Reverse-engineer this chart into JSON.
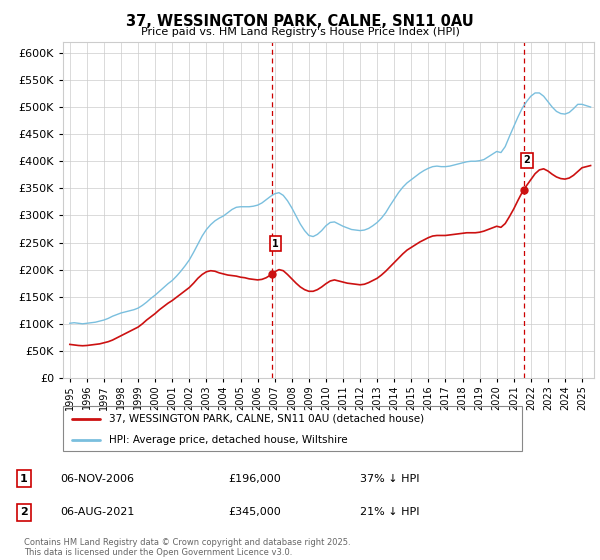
{
  "title": "37, WESSINGTON PARK, CALNE, SN11 0AU",
  "subtitle": "Price paid vs. HM Land Registry's House Price Index (HPI)",
  "legend_line1": "37, WESSINGTON PARK, CALNE, SN11 0AU (detached house)",
  "legend_line2": "HPI: Average price, detached house, Wiltshire",
  "marker1_date": "06-NOV-2006",
  "marker1_price": 196000,
  "marker1_label": "37% ↓ HPI",
  "marker2_date": "06-AUG-2021",
  "marker2_price": 345000,
  "marker2_label": "21% ↓ HPI",
  "footnote": "Contains HM Land Registry data © Crown copyright and database right 2025.\nThis data is licensed under the Open Government Licence v3.0.",
  "hpi_color": "#7abfde",
  "price_color": "#cc1111",
  "vline_color": "#cc0000",
  "marker1_x": 2006.85,
  "marker2_x": 2021.58,
  "ylim_max": 620000,
  "ylim_min": 0,
  "xlim_min": 1994.6,
  "xlim_max": 2025.7,
  "hpi_data": [
    [
      1995,
      101000
    ],
    [
      1995.25,
      102000
    ],
    [
      1995.5,
      101000
    ],
    [
      1995.75,
      100000
    ],
    [
      1996,
      101000
    ],
    [
      1996.25,
      102000
    ],
    [
      1996.5,
      103000
    ],
    [
      1996.75,
      105000
    ],
    [
      1997,
      107000
    ],
    [
      1997.25,
      110000
    ],
    [
      1997.5,
      114000
    ],
    [
      1997.75,
      117000
    ],
    [
      1998,
      120000
    ],
    [
      1998.25,
      122000
    ],
    [
      1998.5,
      124000
    ],
    [
      1998.75,
      126000
    ],
    [
      1999,
      129000
    ],
    [
      1999.25,
      134000
    ],
    [
      1999.5,
      140000
    ],
    [
      1999.75,
      147000
    ],
    [
      2000,
      153000
    ],
    [
      2000.25,
      160000
    ],
    [
      2000.5,
      167000
    ],
    [
      2000.75,
      174000
    ],
    [
      2001,
      180000
    ],
    [
      2001.25,
      188000
    ],
    [
      2001.5,
      197000
    ],
    [
      2001.75,
      207000
    ],
    [
      2002,
      218000
    ],
    [
      2002.25,
      232000
    ],
    [
      2002.5,
      247000
    ],
    [
      2002.75,
      262000
    ],
    [
      2003,
      274000
    ],
    [
      2003.25,
      283000
    ],
    [
      2003.5,
      290000
    ],
    [
      2003.75,
      295000
    ],
    [
      2004,
      299000
    ],
    [
      2004.25,
      305000
    ],
    [
      2004.5,
      311000
    ],
    [
      2004.75,
      315000
    ],
    [
      2005,
      316000
    ],
    [
      2005.25,
      316000
    ],
    [
      2005.5,
      316000
    ],
    [
      2005.75,
      317000
    ],
    [
      2006,
      319000
    ],
    [
      2006.25,
      323000
    ],
    [
      2006.5,
      329000
    ],
    [
      2006.75,
      335000
    ],
    [
      2007,
      340000
    ],
    [
      2007.25,
      342000
    ],
    [
      2007.5,
      337000
    ],
    [
      2007.75,
      327000
    ],
    [
      2008,
      314000
    ],
    [
      2008.25,
      299000
    ],
    [
      2008.5,
      284000
    ],
    [
      2008.75,
      272000
    ],
    [
      2009,
      263000
    ],
    [
      2009.25,
      261000
    ],
    [
      2009.5,
      265000
    ],
    [
      2009.75,
      272000
    ],
    [
      2010,
      281000
    ],
    [
      2010.25,
      287000
    ],
    [
      2010.5,
      288000
    ],
    [
      2010.75,
      284000
    ],
    [
      2011,
      280000
    ],
    [
      2011.25,
      277000
    ],
    [
      2011.5,
      274000
    ],
    [
      2011.75,
      273000
    ],
    [
      2012,
      272000
    ],
    [
      2012.25,
      273000
    ],
    [
      2012.5,
      276000
    ],
    [
      2012.75,
      281000
    ],
    [
      2013,
      287000
    ],
    [
      2013.25,
      295000
    ],
    [
      2013.5,
      305000
    ],
    [
      2013.75,
      318000
    ],
    [
      2014,
      330000
    ],
    [
      2014.25,
      342000
    ],
    [
      2014.5,
      352000
    ],
    [
      2014.75,
      360000
    ],
    [
      2015,
      366000
    ],
    [
      2015.25,
      372000
    ],
    [
      2015.5,
      378000
    ],
    [
      2015.75,
      383000
    ],
    [
      2016,
      387000
    ],
    [
      2016.25,
      390000
    ],
    [
      2016.5,
      391000
    ],
    [
      2016.75,
      390000
    ],
    [
      2017,
      390000
    ],
    [
      2017.25,
      391000
    ],
    [
      2017.5,
      393000
    ],
    [
      2017.75,
      395000
    ],
    [
      2018,
      397000
    ],
    [
      2018.25,
      399000
    ],
    [
      2018.5,
      400000
    ],
    [
      2018.75,
      400000
    ],
    [
      2019,
      401000
    ],
    [
      2019.25,
      403000
    ],
    [
      2019.5,
      408000
    ],
    [
      2019.75,
      413000
    ],
    [
      2020,
      418000
    ],
    [
      2020.25,
      416000
    ],
    [
      2020.5,
      427000
    ],
    [
      2020.75,
      446000
    ],
    [
      2021,
      464000
    ],
    [
      2021.25,
      482000
    ],
    [
      2021.5,
      498000
    ],
    [
      2021.75,
      510000
    ],
    [
      2022,
      520000
    ],
    [
      2022.25,
      526000
    ],
    [
      2022.5,
      526000
    ],
    [
      2022.75,
      520000
    ],
    [
      2023,
      510000
    ],
    [
      2023.25,
      500000
    ],
    [
      2023.5,
      492000
    ],
    [
      2023.75,
      488000
    ],
    [
      2024,
      487000
    ],
    [
      2024.25,
      490000
    ],
    [
      2024.5,
      497000
    ],
    [
      2024.75,
      505000
    ],
    [
      2025,
      505000
    ],
    [
      2025.5,
      500000
    ]
  ],
  "price_data": [
    [
      1995,
      62000
    ],
    [
      1995.25,
      61000
    ],
    [
      1995.5,
      60000
    ],
    [
      1995.75,
      59500
    ],
    [
      1996,
      60000
    ],
    [
      1996.25,
      61000
    ],
    [
      1996.5,
      62000
    ],
    [
      1996.75,
      63000
    ],
    [
      1997,
      65000
    ],
    [
      1997.25,
      67000
    ],
    [
      1997.5,
      70000
    ],
    [
      1997.75,
      74000
    ],
    [
      1998,
      78000
    ],
    [
      1998.25,
      82000
    ],
    [
      1998.5,
      86000
    ],
    [
      1998.75,
      90000
    ],
    [
      1999,
      94000
    ],
    [
      1999.25,
      100000
    ],
    [
      1999.5,
      107000
    ],
    [
      1999.75,
      113000
    ],
    [
      2000,
      119000
    ],
    [
      2000.25,
      126000
    ],
    [
      2000.5,
      132000
    ],
    [
      2000.75,
      138000
    ],
    [
      2001,
      143000
    ],
    [
      2001.25,
      149000
    ],
    [
      2001.5,
      155000
    ],
    [
      2001.75,
      161000
    ],
    [
      2002,
      167000
    ],
    [
      2002.25,
      175000
    ],
    [
      2002.5,
      184000
    ],
    [
      2002.75,
      191000
    ],
    [
      2003,
      196000
    ],
    [
      2003.25,
      198000
    ],
    [
      2003.5,
      197000
    ],
    [
      2003.75,
      194000
    ],
    [
      2004,
      192000
    ],
    [
      2004.25,
      190000
    ],
    [
      2004.5,
      189000
    ],
    [
      2004.75,
      188000
    ],
    [
      2005,
      186000
    ],
    [
      2005.25,
      185000
    ],
    [
      2005.5,
      183000
    ],
    [
      2005.75,
      182000
    ],
    [
      2006,
      181000
    ],
    [
      2006.25,
      182000
    ],
    [
      2006.5,
      185000
    ],
    [
      2006.75,
      190000
    ],
    [
      2007,
      196000
    ],
    [
      2007.25,
      200000
    ],
    [
      2007.5,
      198000
    ],
    [
      2007.75,
      191000
    ],
    [
      2008,
      183000
    ],
    [
      2008.25,
      175000
    ],
    [
      2008.5,
      168000
    ],
    [
      2008.75,
      163000
    ],
    [
      2009,
      160000
    ],
    [
      2009.25,
      160000
    ],
    [
      2009.5,
      163000
    ],
    [
      2009.75,
      168000
    ],
    [
      2010,
      174000
    ],
    [
      2010.25,
      179000
    ],
    [
      2010.5,
      181000
    ],
    [
      2010.75,
      179000
    ],
    [
      2011,
      177000
    ],
    [
      2011.25,
      175000
    ],
    [
      2011.5,
      174000
    ],
    [
      2011.75,
      173000
    ],
    [
      2012,
      172000
    ],
    [
      2012.25,
      173000
    ],
    [
      2012.5,
      176000
    ],
    [
      2012.75,
      180000
    ],
    [
      2013,
      184000
    ],
    [
      2013.25,
      190000
    ],
    [
      2013.5,
      197000
    ],
    [
      2013.75,
      205000
    ],
    [
      2014,
      213000
    ],
    [
      2014.25,
      221000
    ],
    [
      2014.5,
      229000
    ],
    [
      2014.75,
      236000
    ],
    [
      2015,
      241000
    ],
    [
      2015.25,
      246000
    ],
    [
      2015.5,
      251000
    ],
    [
      2015.75,
      255000
    ],
    [
      2016,
      259000
    ],
    [
      2016.25,
      262000
    ],
    [
      2016.5,
      263000
    ],
    [
      2016.75,
      263000
    ],
    [
      2017,
      263000
    ],
    [
      2017.25,
      264000
    ],
    [
      2017.5,
      265000
    ],
    [
      2017.75,
      266000
    ],
    [
      2018,
      267000
    ],
    [
      2018.25,
      268000
    ],
    [
      2018.5,
      268000
    ],
    [
      2018.75,
      268000
    ],
    [
      2019,
      269000
    ],
    [
      2019.25,
      271000
    ],
    [
      2019.5,
      274000
    ],
    [
      2019.75,
      277000
    ],
    [
      2020,
      280000
    ],
    [
      2020.25,
      278000
    ],
    [
      2020.5,
      285000
    ],
    [
      2020.75,
      298000
    ],
    [
      2021,
      312000
    ],
    [
      2021.25,
      328000
    ],
    [
      2021.5,
      343000
    ],
    [
      2021.75,
      355000
    ],
    [
      2022,
      366000
    ],
    [
      2022.25,
      377000
    ],
    [
      2022.5,
      384000
    ],
    [
      2022.75,
      386000
    ],
    [
      2023,
      382000
    ],
    [
      2023.25,
      376000
    ],
    [
      2023.5,
      371000
    ],
    [
      2023.75,
      368000
    ],
    [
      2024,
      367000
    ],
    [
      2024.25,
      369000
    ],
    [
      2024.5,
      374000
    ],
    [
      2024.75,
      381000
    ],
    [
      2025,
      388000
    ],
    [
      2025.5,
      392000
    ]
  ]
}
